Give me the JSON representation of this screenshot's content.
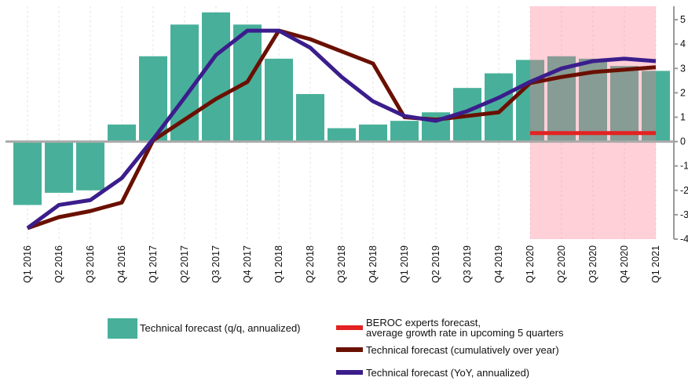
{
  "chart_data": {
    "type": "combo",
    "categories": [
      "Q1 2016",
      "Q2 2016",
      "Q3 2016",
      "Q4 2016",
      "Q1 2017",
      "Q2 2017",
      "Q3 2017",
      "Q4 2017",
      "Q1 2018",
      "Q2 2018",
      "Q3 2018",
      "Q4 2018",
      "Q1 2019",
      "Q2 2019",
      "Q3 2019",
      "Q4 2019",
      "Q1 2020",
      "Q2 2020",
      "Q3 2020",
      "Q4 2020",
      "Q1 2021"
    ],
    "series": [
      {
        "name": "Technical forecast (q/q, annualized)",
        "type": "bar",
        "color": "#48b09a",
        "values": [
          -2.6,
          -2.1,
          -2.0,
          0.7,
          3.5,
          4.8,
          5.3,
          4.8,
          3.4,
          1.95,
          0.55,
          0.7,
          0.85,
          1.2,
          2.2,
          2.8,
          3.35,
          3.5,
          3.4,
          3.1,
          2.9
        ]
      },
      {
        "name": "BEROC experts forecast,\n average growth rate in upcoming 5 quarters",
        "type": "line",
        "color": "#e32222",
        "values": [
          null,
          null,
          null,
          null,
          null,
          null,
          null,
          null,
          null,
          null,
          null,
          null,
          null,
          null,
          null,
          null,
          0.35,
          0.35,
          0.35,
          0.35,
          0.35
        ]
      },
      {
        "name": "Technical forecast (cumulatively over year)",
        "type": "line",
        "color": "#6a1000",
        "values": [
          -3.55,
          -3.1,
          -2.85,
          -2.5,
          0.05,
          0.9,
          1.75,
          2.45,
          4.55,
          4.2,
          3.7,
          3.2,
          1.0,
          0.9,
          1.05,
          1.2,
          2.4,
          2.65,
          2.85,
          2.95,
          3.05
        ]
      },
      {
        "name": "Technical forecast (YoY, annualized)",
        "type": "line",
        "color": "#3b1d8c",
        "values": [
          -3.55,
          -2.6,
          -2.4,
          -1.5,
          0.1,
          1.8,
          3.55,
          4.55,
          4.55,
          3.85,
          2.65,
          1.65,
          1.05,
          0.85,
          1.25,
          1.8,
          2.45,
          3.0,
          3.3,
          3.4,
          3.3
        ]
      }
    ],
    "ylim": [
      -4,
      5.55
    ],
    "yticks": [
      -4,
      -3,
      -2,
      -1,
      0,
      1,
      2,
      3,
      4,
      5
    ],
    "grid": true
  }
}
